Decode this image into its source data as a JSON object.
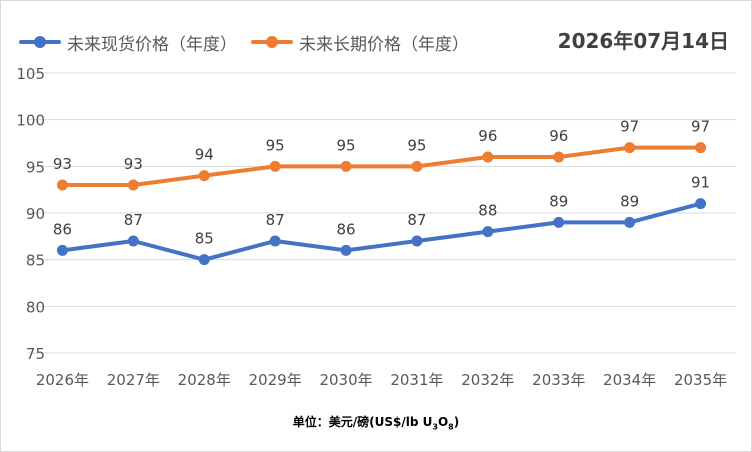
{
  "date_label": "2026年07月14日",
  "unit": {
    "prefix": "单位：美元/磅(US$/lb U",
    "sub1": "3",
    "mid": "O",
    "sub2": "8",
    "suffix": ")"
  },
  "legend": [
    {
      "label": "未来现货价格（年度）",
      "color": "#4472c4"
    },
    {
      "label": "未来长期价格（年度）",
      "color": "#ed7d31"
    }
  ],
  "chart_data": {
    "type": "line",
    "categories": [
      "2026年",
      "2027年",
      "2028年",
      "2029年",
      "2030年",
      "2031年",
      "2032年",
      "2033年",
      "2034年",
      "2035年"
    ],
    "series": [
      {
        "name": "未来现货价格（年度）",
        "color": "#4472c4",
        "values": [
          86,
          87,
          85,
          87,
          86,
          87,
          88,
          89,
          89,
          91
        ]
      },
      {
        "name": "未来长期价格（年度）",
        "color": "#ed7d31",
        "values": [
          93,
          93,
          94,
          95,
          95,
          95,
          96,
          96,
          97,
          97
        ]
      }
    ],
    "ylim": [
      75,
      105
    ],
    "yticks": [
      75,
      80,
      85,
      90,
      95,
      100,
      105
    ],
    "grid": true,
    "data_labels": true,
    "legend_position": "top-left"
  }
}
